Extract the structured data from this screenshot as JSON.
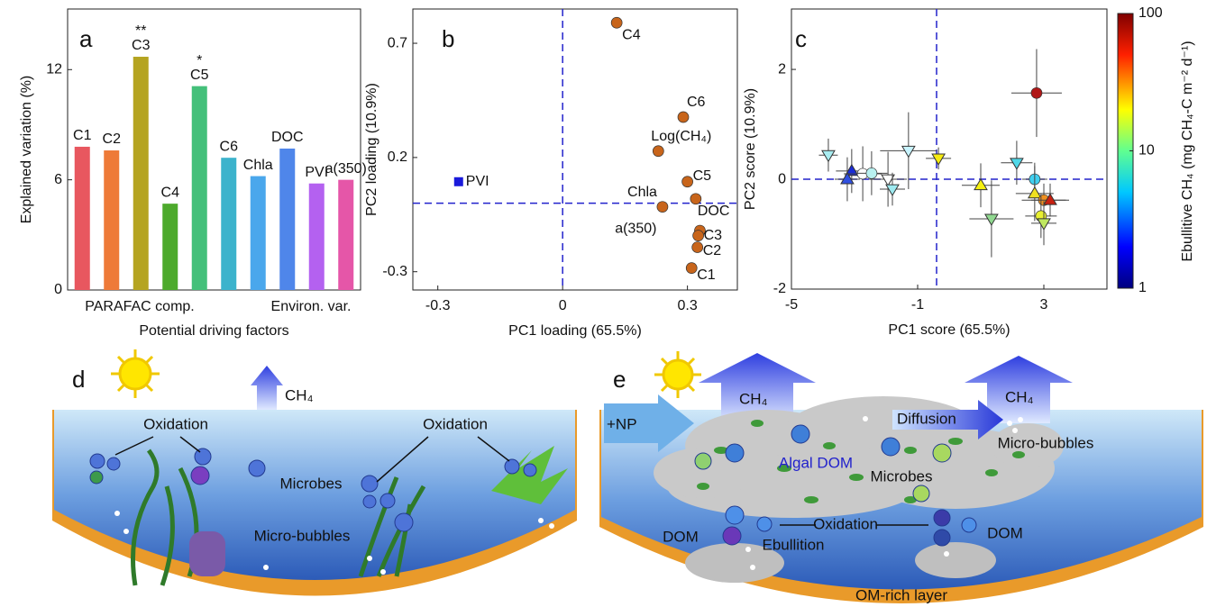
{
  "chart_data": [
    {
      "type": "bar",
      "panel_label": "a",
      "categories": [
        "C1",
        "C2",
        "C3",
        "C4",
        "C5",
        "C6",
        "Chla",
        "DOC",
        "PVI",
        "a(350)"
      ],
      "values": [
        7.8,
        7.6,
        12.7,
        4.7,
        11.1,
        7.2,
        6.2,
        7.7,
        5.8,
        6.0
      ],
      "colors": [
        "#e8575f",
        "#ee7a38",
        "#b5a421",
        "#4daa2c",
        "#44c07a",
        "#3cb3cc",
        "#4aa7ec",
        "#4f86ea",
        "#b461f0",
        "#e556a8"
      ],
      "significance": [
        null,
        null,
        "**",
        null,
        "*",
        null,
        null,
        null,
        null,
        null
      ],
      "group_labels": [
        "PARAFAC comp.",
        "Environ. var."
      ],
      "xlabel": "Potential driving factors",
      "ylabel": "Explained variation (%)",
      "ylim": [
        0,
        15.3
      ],
      "yticks": [
        0,
        6,
        12
      ]
    },
    {
      "type": "scatter",
      "panel_label": "b",
      "xlabel": "PC1 loading (65.5%)",
      "ylabel": "PC2 loading (10.9%)",
      "xlim": [
        -0.36,
        0.42
      ],
      "ylim": [
        -0.38,
        0.85
      ],
      "xticks": [
        -0.3,
        0,
        0.3
      ],
      "yticks": [
        -0.3,
        0.2,
        0.7
      ],
      "ref_lines": {
        "x": 0,
        "y": 0
      },
      "series": [
        {
          "marker": "circle",
          "color": "#c8651b",
          "labels": [
            "C4",
            "C6",
            "Log(CH₄)",
            "C5",
            "DOC",
            "Chla",
            "a(350)",
            "C3",
            "C2",
            "C1"
          ],
          "x": [
            0.13,
            0.29,
            0.23,
            0.3,
            0.32,
            0.24,
            0.33,
            0.326,
            0.324,
            0.31
          ],
          "values": [
            0.79,
            0.377,
            0.228,
            0.094,
            0.019,
            -0.016,
            -0.12,
            -0.142,
            -0.193,
            -0.284
          ]
        },
        {
          "marker": "square",
          "color": "#1a1adb",
          "labels": [
            "PVI"
          ],
          "x": [
            -0.25
          ],
          "values": [
            0.094
          ]
        }
      ]
    },
    {
      "type": "scatter",
      "panel_label": "c",
      "xlabel": "PC1 score (65.5%)",
      "ylabel": "PC2 score (10.9%)",
      "xlim": [
        -5,
        5
      ],
      "ylim": [
        -2,
        3.1
      ],
      "xticks": [
        -5,
        -1,
        3
      ],
      "yticks": [
        -2,
        0,
        2
      ],
      "ref_lines": {
        "x": -0.4,
        "y": 0
      },
      "series": [
        {
          "x": [
            -3.83,
            -3.09,
            -3.23,
            -2.74,
            -2.46,
            -1.94,
            -1.8,
            -1.29,
            -0.34,
            1.0,
            1.34,
            2.14,
            2.71,
            2.71,
            2.77,
            3.0,
            3.2,
            2.91,
            3.0
          ],
          "values": [
            0.44,
            0.15,
            0,
            0.1,
            0.11,
            0,
            -0.18,
            0.52,
            0.38,
            -0.11,
            -0.72,
            0.3,
            0,
            -0.26,
            1.57,
            -0.38,
            -0.38,
            -0.67,
            -0.8
          ],
          "x_err": [
            0.3,
            0.5,
            0.4,
            0.6,
            0.5,
            0.6,
            0.4,
            0.9,
            0.4,
            0.6,
            0.7,
            0.5,
            0.4,
            0.6,
            0.8,
            0.7,
            0.6,
            0.5,
            0.4
          ],
          "y_err": [
            0.3,
            0.4,
            0.4,
            0.5,
            0.4,
            0.5,
            0.3,
            0.7,
            0.2,
            0.4,
            0.7,
            0.4,
            0.3,
            0.5,
            0.8,
            0.3,
            0.3,
            0.4,
            0.4
          ],
          "markers": [
            "triangle-down",
            "triangle-up",
            "triangle-up",
            "circle",
            "circle",
            "triangle-down",
            "triangle-down",
            "triangle-down",
            "triangle-down",
            "triangle-up",
            "triangle-down",
            "triangle-down",
            "circle",
            "triangle-up",
            "circle",
            "circle",
            "triangle-up",
            "circle",
            "triangle-down"
          ],
          "colors": [
            "#a8ecf0",
            "#1a2cd6",
            "#3050e0",
            "#ffffff",
            "#b8f0f0",
            "#ffffff",
            "#9eeaf0",
            "#c8f4ff",
            "#f5ea10",
            "#f5f010",
            "#90d890",
            "#50d8e8",
            "#40d0f0",
            "#f0e020",
            "#b01818",
            "#f09020",
            "#c82010",
            "#e8f030",
            "#c0e860"
          ]
        }
      ],
      "colorbar": {
        "label": "Ebullitive CH₄ (mg CH₄-C m⁻² d⁻¹)",
        "lim": [
          1,
          100
        ],
        "ticks": [
          1,
          10,
          100
        ],
        "log": true
      }
    }
  ],
  "diagrams": {
    "d": {
      "panel_label": "d",
      "ch4": "CH₄",
      "oxidation": [
        "Oxidation",
        "Oxidation"
      ],
      "microbes": "Microbes",
      "micro_bubbles": "Micro-bubbles"
    },
    "e": {
      "panel_label": "e",
      "nutrients": "+NP",
      "ch4": [
        "CH₄",
        "CH₄"
      ],
      "diffusion": "Diffusion",
      "micro_bubbles": "Micro-bubbles",
      "algal_dom": "Algal DOM",
      "microbes": "Microbes",
      "oxidation": "Oxidation",
      "dom": [
        "DOM",
        "DOM"
      ],
      "ebullition": "Ebullition",
      "sediment": "OM-rich layer"
    }
  }
}
